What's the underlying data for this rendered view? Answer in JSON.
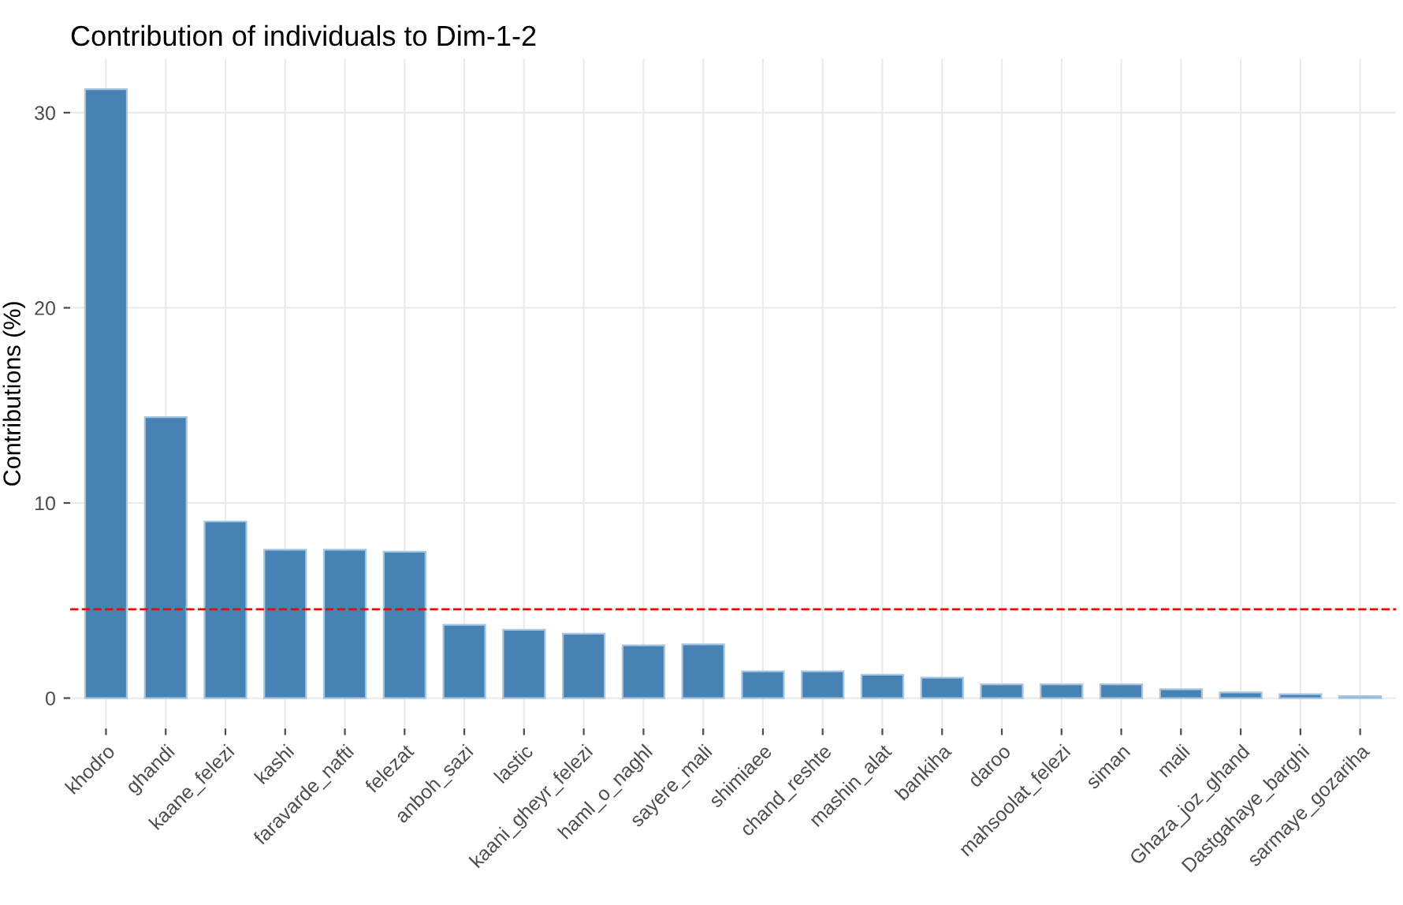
{
  "chart_data": {
    "type": "bar",
    "title": "Contribution of individuals to Dim-1-2",
    "ylabel": "Contributions (%)",
    "categories": [
      "khodro",
      "ghandi",
      "kaane_felezi",
      "kashi",
      "faravarde_nafti",
      "felezat",
      "anboh_sazi",
      "lastic",
      "kaani_gheyr_felezi",
      "haml_o_naghl",
      "sayere_mali",
      "shimiaee",
      "chand_reshte",
      "mashin_alat",
      "bankiha",
      "daroo",
      "mahsoolat_felezi",
      "siman",
      "mali",
      "Ghaza_joz_ghand",
      "Dastgahaye_barghi",
      "sarmaye_gozariha"
    ],
    "values": [
      31.2,
      14.4,
      9.05,
      7.6,
      7.6,
      7.5,
      3.75,
      3.5,
      3.3,
      2.7,
      2.75,
      1.37,
      1.37,
      1.2,
      1.05,
      0.7,
      0.7,
      0.7,
      0.45,
      0.29,
      0.2,
      0.1
    ],
    "color": "#4682b4",
    "ylim": [
      -1.56,
      32.76
    ],
    "yticks": [
      0,
      10,
      20,
      30
    ],
    "grid": true,
    "ref_lines": [
      {
        "axis": "y",
        "value": 4.55,
        "color": "#ff0000",
        "line_style": "dashed"
      }
    ]
  }
}
